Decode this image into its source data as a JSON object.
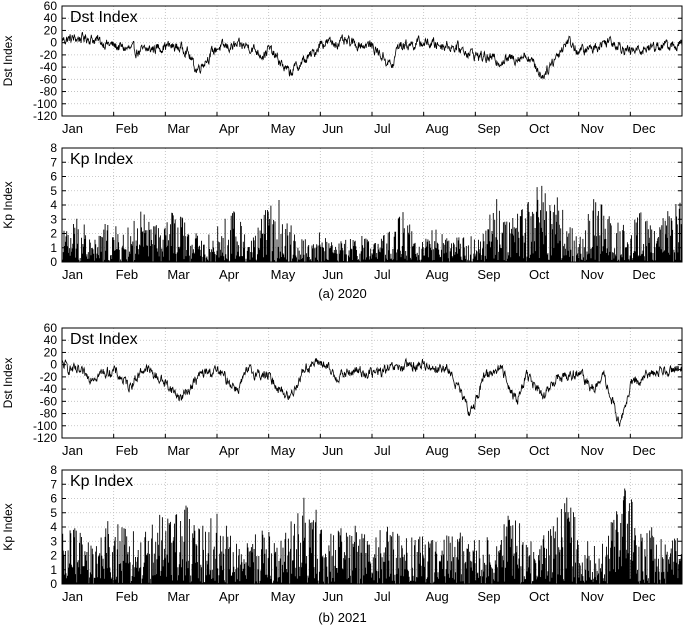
{
  "months": [
    "Jan",
    "Feb",
    "Mar",
    "Apr",
    "May",
    "Jun",
    "Jul",
    "Aug",
    "Sep",
    "Oct",
    "Nov",
    "Dec"
  ],
  "colors": {
    "line": "#000000",
    "axis": "#000000",
    "grid": "#bbbbbb"
  },
  "chart_data": [
    {
      "type": "line",
      "title": "Dst Index",
      "ylabel": "Dst Index",
      "xlabel": "",
      "ylim": [
        -120,
        60
      ],
      "yticks": [
        60,
        40,
        20,
        0,
        -20,
        -40,
        -60,
        -80,
        -100,
        -120
      ],
      "categories": [
        "Jan",
        "Feb",
        "Mar",
        "Apr",
        "May",
        "Jun",
        "Jul",
        "Aug",
        "Sep",
        "Oct",
        "Nov",
        "Dec"
      ],
      "grid": true,
      "year": "2020",
      "series": [
        {
          "x": [
            0,
            0.5,
            1,
            1.5,
            2,
            2.4,
            2.6,
            3,
            3.6,
            3.9,
            4,
            4.4,
            4.9,
            5,
            5.5,
            6,
            6.4,
            6.5,
            7,
            7.5,
            7.7,
            8,
            8.5,
            9,
            9.3,
            9.5,
            9.8,
            10,
            10.3,
            10.6,
            11,
            11.5,
            12
          ],
          "y": [
            5,
            8,
            -5,
            -15,
            -5,
            -10,
            -45,
            -8,
            -5,
            -20,
            -10,
            -50,
            -15,
            0,
            0,
            -5,
            -40,
            -5,
            0,
            -5,
            -10,
            -20,
            -30,
            -20,
            -55,
            -30,
            5,
            -15,
            -8,
            5,
            -15,
            -5,
            -5
          ]
        }
      ]
    },
    {
      "type": "bar",
      "title": "Kp Index",
      "ylabel": "Kp Index",
      "xlabel": "",
      "ylim": [
        0,
        8
      ],
      "yticks": [
        8,
        7,
        6,
        5,
        4,
        3,
        2,
        1,
        0
      ],
      "categories": [
        "Jan",
        "Feb",
        "Mar",
        "Apr",
        "May",
        "Jun",
        "Jul",
        "Aug",
        "Sep",
        "Oct",
        "Nov",
        "Dec"
      ],
      "grid": true,
      "year": "2020",
      "series": [
        {
          "x": [
            0,
            0.3,
            0.6,
            0.9,
            1.2,
            1.5,
            1.8,
            2.1,
            2.4,
            2.7,
            3,
            3.3,
            3.6,
            3.9,
            4.2,
            4.5,
            4.8,
            5.1,
            5.4,
            5.7,
            6,
            6.3,
            6.6,
            6.9,
            7.2,
            7.5,
            7.8,
            8.1,
            8.4,
            8.7,
            9,
            9.2,
            9.4,
            9.6,
            9.8,
            10,
            10.3,
            10.6,
            10.9,
            11.2,
            11.5,
            11.8
          ],
          "y": [
            2,
            3.5,
            1.5,
            3,
            2,
            3.7,
            2.5,
            3.5,
            3,
            1.5,
            2.5,
            3.7,
            2,
            3.5,
            4.6,
            2,
            1.5,
            2.5,
            1.5,
            2,
            1.5,
            2,
            3.5,
            1.5,
            2.5,
            1.5,
            2,
            1.5,
            4.5,
            3,
            4,
            5.6,
            5,
            4.5,
            3,
            1.5,
            4.5,
            3.5,
            2.5,
            3.5,
            2,
            4.4
          ]
        }
      ]
    },
    {
      "type": "line",
      "title": "Dst Index",
      "ylabel": "Dst Index",
      "xlabel": "",
      "ylim": [
        -120,
        60
      ],
      "yticks": [
        60,
        40,
        20,
        0,
        -20,
        -40,
        -60,
        -80,
        -100,
        -120
      ],
      "categories": [
        "Jan",
        "Feb",
        "Mar",
        "Apr",
        "May",
        "Jun",
        "Jul",
        "Aug",
        "Sep",
        "Oct",
        "Nov",
        "Dec"
      ],
      "grid": true,
      "year": "2021",
      "series": [
        {
          "x": [
            0,
            0.5,
            1,
            1.3,
            1.6,
            2,
            2.3,
            2.7,
            3,
            3.4,
            3.6,
            4,
            4.4,
            4.7,
            5,
            5.3,
            5.7,
            6,
            6.5,
            7,
            7.5,
            7.9,
            8.2,
            8.5,
            8.8,
            9,
            9.3,
            9.6,
            10,
            10.3,
            10.5,
            10.8,
            11,
            11.5,
            12
          ],
          "y": [
            0,
            -20,
            -10,
            -35,
            -5,
            -30,
            -55,
            -15,
            -10,
            -40,
            -10,
            -20,
            -55,
            -5,
            5,
            -20,
            -10,
            -15,
            -5,
            0,
            -10,
            -80,
            -15,
            -5,
            -60,
            -15,
            -55,
            -20,
            -15,
            -40,
            -20,
            -100,
            -35,
            -10,
            -5
          ]
        }
      ]
    },
    {
      "type": "bar",
      "title": "Kp Index",
      "ylabel": "Kp Index",
      "xlabel": "",
      "ylim": [
        0,
        8
      ],
      "yticks": [
        8,
        7,
        6,
        5,
        4,
        3,
        2,
        1,
        0
      ],
      "categories": [
        "Jan",
        "Feb",
        "Mar",
        "Apr",
        "May",
        "Jun",
        "Jul",
        "Aug",
        "Sep",
        "Oct",
        "Nov",
        "Dec"
      ],
      "grid": true,
      "year": "2021",
      "series": [
        {
          "x": [
            0,
            0.3,
            0.6,
            0.9,
            1.2,
            1.5,
            1.8,
            2.1,
            2.4,
            2.7,
            3,
            3.3,
            3.6,
            3.9,
            4.2,
            4.5,
            4.8,
            5.1,
            5.4,
            5.7,
            6,
            6.3,
            6.6,
            6.9,
            7.2,
            7.5,
            7.8,
            8.1,
            8.4,
            8.7,
            9,
            9.2,
            9.5,
            9.8,
            10,
            10.3,
            10.6,
            10.9,
            11.2,
            11.5,
            11.8
          ],
          "y": [
            3.5,
            4,
            2.5,
            4.5,
            4,
            3.5,
            5,
            4.5,
            5.5,
            4,
            5,
            3.5,
            3,
            4,
            3,
            5,
            7,
            3,
            5,
            4,
            3,
            4.5,
            3,
            4,
            3,
            3.5,
            4,
            3,
            4,
            5,
            4,
            3,
            4,
            6.3,
            4,
            3,
            4,
            7.6,
            3.5,
            4.5,
            3.5
          ]
        }
      ]
    }
  ],
  "captions": [
    "(a)  2020",
    "(b)  2021"
  ]
}
